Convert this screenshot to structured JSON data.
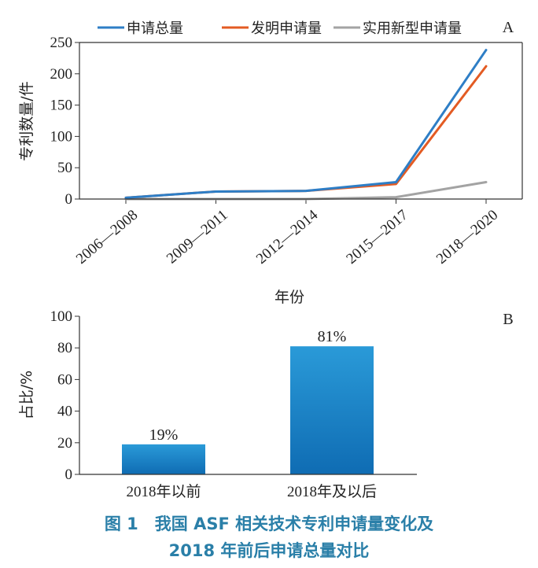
{
  "chart_data": [
    {
      "type": "line",
      "panel_label": "A",
      "categories": [
        "2006—2008",
        "2009—2011",
        "2012—2014",
        "2015—2017",
        "2018—2020"
      ],
      "series": [
        {
          "name": "申请总量",
          "color": "#2e7ec6",
          "values": [
            2,
            12,
            13,
            27,
            238
          ]
        },
        {
          "name": "发明申请量",
          "color": "#e35b23",
          "values": [
            2,
            12,
            13,
            24,
            212
          ]
        },
        {
          "name": "实用新型申请量",
          "color": "#a3a3a3",
          "values": [
            0,
            0,
            0,
            3,
            27
          ]
        }
      ],
      "xlabel": "年份",
      "ylabel": "专利数量/件",
      "ylim": [
        0,
        250
      ],
      "yticks": [
        "0",
        "50",
        "100",
        "150",
        "200",
        "250"
      ],
      "legend": "top"
    },
    {
      "type": "bar",
      "panel_label": "B",
      "categories": [
        "2018年以前",
        "2018年及以后"
      ],
      "values": [
        19,
        81
      ],
      "data_labels": [
        "19%",
        "81%"
      ],
      "ylabel": "占比/%",
      "ylim": [
        0,
        100
      ],
      "yticks": [
        "0",
        "20",
        "40",
        "60",
        "80",
        "100"
      ],
      "bar_color": "#1a7fc4"
    }
  ],
  "caption": {
    "line1": "图 1　我国 ASF 相关技术专利申请量变化及",
    "line2": "2018 年前后申请总量对比"
  }
}
